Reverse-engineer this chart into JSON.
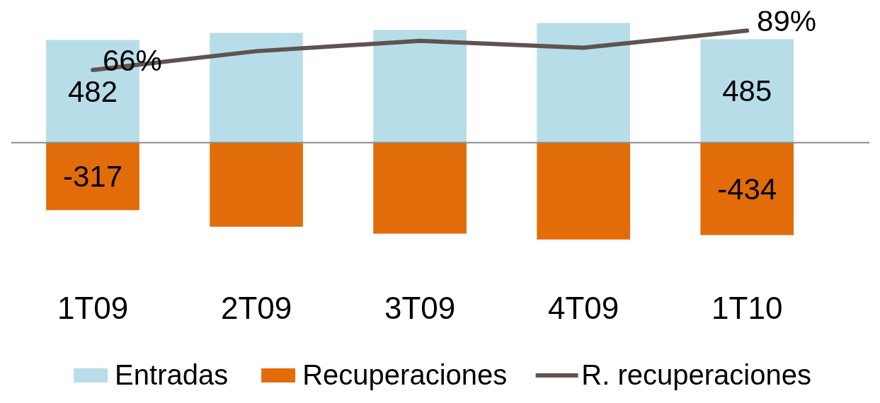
{
  "chart_data": {
    "type": "bar",
    "categories": [
      "1T09",
      "2T09",
      "3T09",
      "4T09",
      "1T10"
    ],
    "series": [
      {
        "name": "Entradas",
        "color": "#b7dde8",
        "values": [
          482,
          515,
          529,
          562,
          485
        ],
        "value_labels": [
          "482",
          null,
          null,
          null,
          "485"
        ]
      },
      {
        "name": "Recuperaciones",
        "color": "#e36c0a",
        "values": [
          -317,
          -395,
          -428,
          -455,
          -434
        ],
        "value_labels": [
          "-317",
          null,
          null,
          null,
          "-434"
        ]
      },
      {
        "name": "R. recuperaciones",
        "type": "line",
        "axis": "y2",
        "color": "#5f5350",
        "values": [
          66,
          77,
          83,
          79,
          89
        ],
        "value_labels": [
          "66%",
          null,
          null,
          null,
          "89%"
        ]
      }
    ],
    "stacked": true,
    "tick_labels": "x",
    "legend": "bottom",
    "line_style": "solid",
    "ref_lines": [
      {
        "axis": "y",
        "value": 0,
        "color": "#8c8c8c"
      }
    ]
  }
}
